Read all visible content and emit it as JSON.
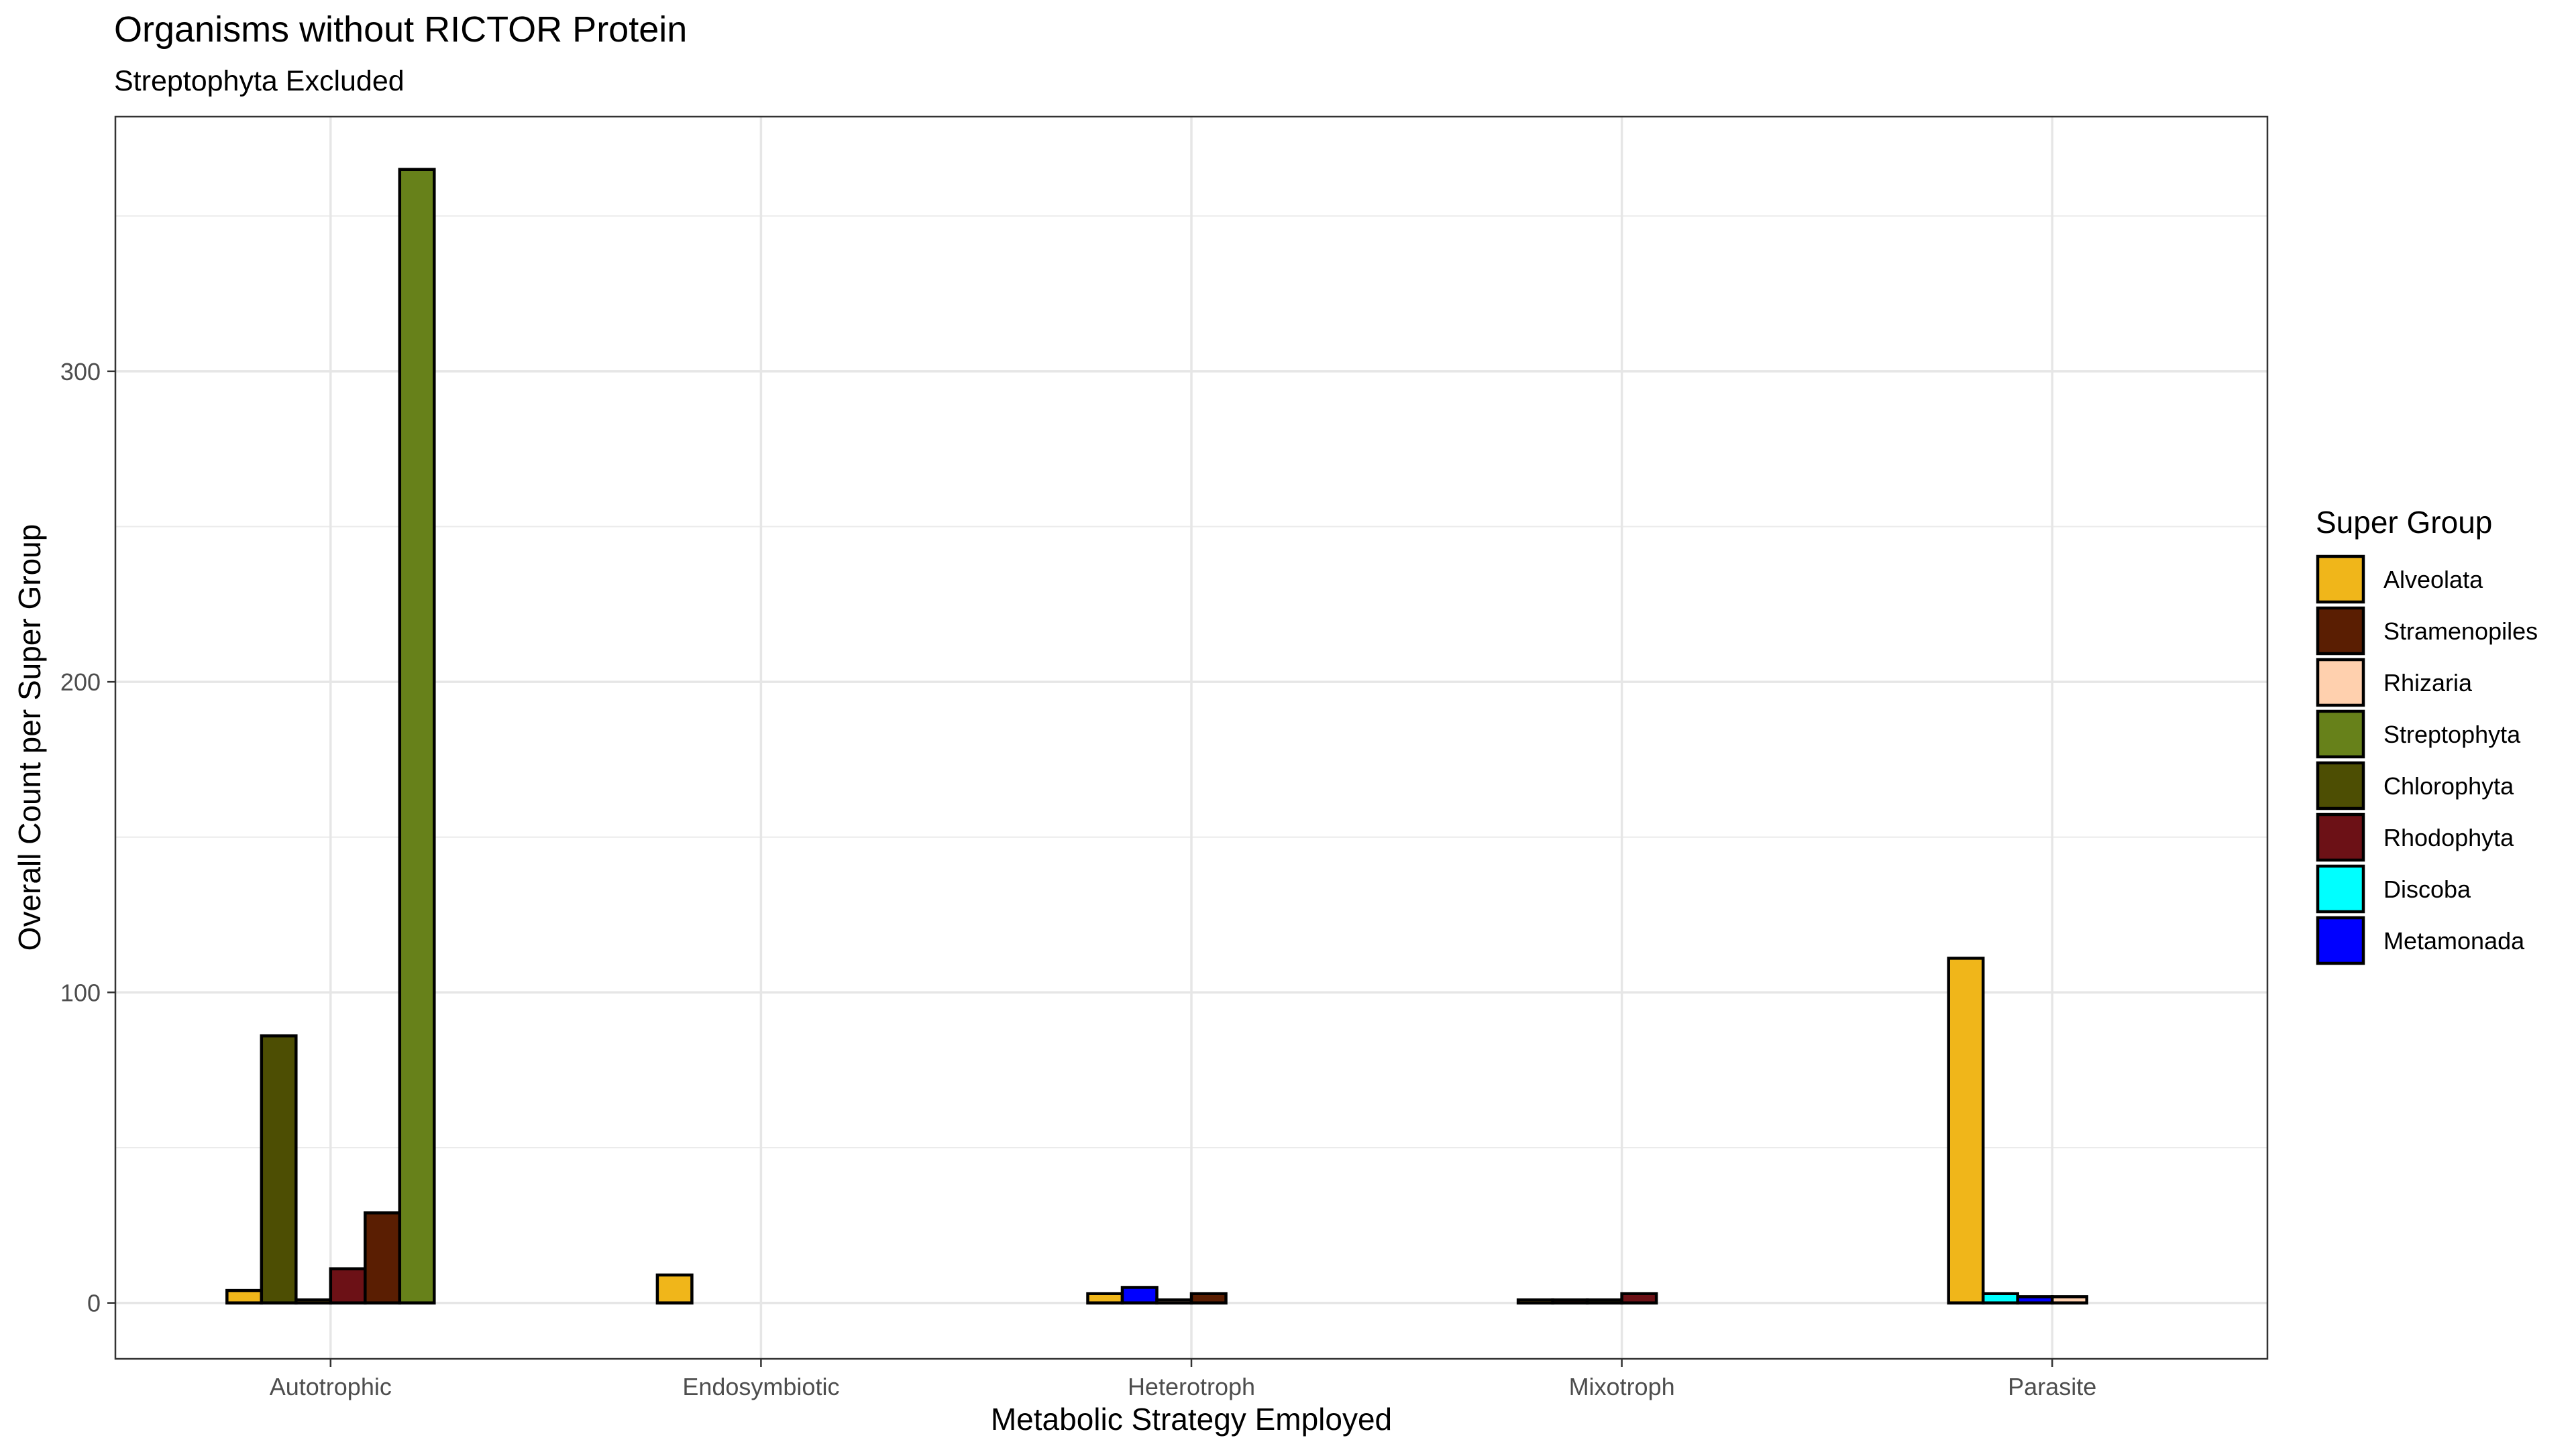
{
  "chart_data": {
    "type": "bar",
    "title": "Organisms without RICTOR Protein",
    "subtitle": "Streptophyta Excluded",
    "xlabel": "Metabolic Strategy Employed",
    "ylabel": "Overall Count per Super Group",
    "ylim": [
      -18,
      382
    ],
    "yticks": [
      0,
      100,
      200,
      300
    ],
    "grid": true,
    "legend_title": "Super Group",
    "legend_position": "right",
    "categories": [
      "Autotrophic",
      "Endosymbiotic",
      "Heterotroph",
      "Mixotroph",
      "Parasite"
    ],
    "legend": [
      {
        "name": "Alveolata",
        "color": "#F0B61A"
      },
      {
        "name": "Stramenopiles",
        "color": "#5A1E02"
      },
      {
        "name": "Rhizaria",
        "color": "#FFD0AE"
      },
      {
        "name": "Streptophyta",
        "color": "#67811A"
      },
      {
        "name": "Chlorophyta",
        "color": "#4D4E03"
      },
      {
        "name": "Rhodophyta",
        "color": "#6C1116"
      },
      {
        "name": "Discoba",
        "color": "#00FFFF"
      },
      {
        "name": "Metamonada",
        "color": "#0000FF"
      }
    ],
    "groups": [
      {
        "category": "Autotrophic",
        "bars": [
          {
            "series": "Alveolata",
            "value": 4
          },
          {
            "series": "Chlorophyta",
            "value": 86
          },
          {
            "series": "Alveolata",
            "value": 1
          },
          {
            "series": "Rhodophyta",
            "value": 11
          },
          {
            "series": "Stramenopiles",
            "value": 29
          },
          {
            "series": "Streptophyta",
            "value": 365
          }
        ]
      },
      {
        "category": "Endosymbiotic",
        "bars": [
          {
            "series": "Alveolata",
            "value": 9
          }
        ]
      },
      {
        "category": "Heterotroph",
        "bars": [
          {
            "series": "Alveolata",
            "value": 3
          },
          {
            "series": "Metamonada",
            "value": 5
          },
          {
            "series": "Rhizaria",
            "value": 1
          },
          {
            "series": "Stramenopiles",
            "value": 3
          }
        ]
      },
      {
        "category": "Mixotroph",
        "bars": [
          {
            "series": "Alveolata",
            "value": 1
          },
          {
            "series": "Stramenopiles",
            "value": 1
          },
          {
            "series": "Chlorophyta",
            "value": 1
          },
          {
            "series": "Rhodophyta",
            "value": 3
          }
        ]
      },
      {
        "category": "Parasite",
        "bars": [
          {
            "series": "Alveolata",
            "value": 111
          },
          {
            "series": "Discoba",
            "value": 3
          },
          {
            "series": "Metamonada",
            "value": 2
          },
          {
            "series": "Rhizaria",
            "value": 2
          }
        ]
      }
    ]
  }
}
